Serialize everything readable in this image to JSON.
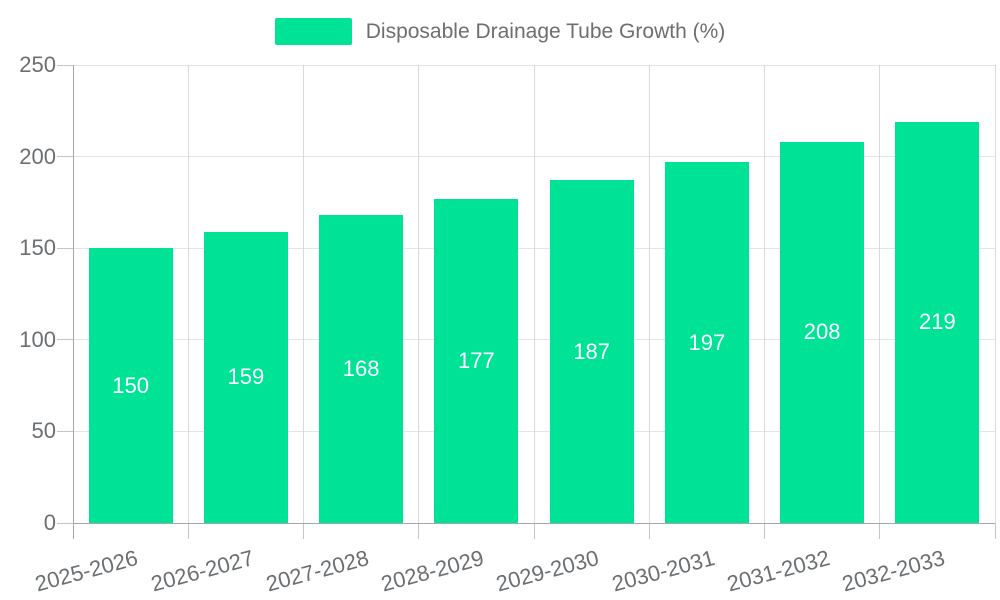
{
  "legend": {
    "label": "Disposable Drainage Tube Growth (%)"
  },
  "chart_data": {
    "type": "bar",
    "title": "",
    "legend_entries": [
      "Disposable Drainage Tube Growth (%)"
    ],
    "legend_position": "top",
    "categories": [
      "2025-2026",
      "2026-2027",
      "2027-2028",
      "2028-2029",
      "2029-2030",
      "2030-2031",
      "2031-2032",
      "2032-2033"
    ],
    "values": [
      150,
      159,
      168,
      177,
      187,
      197,
      208,
      219
    ],
    "xlabel": "",
    "ylabel": "",
    "ylim": [
      0,
      250
    ],
    "yticks": [
      0,
      50,
      100,
      150,
      200,
      250
    ],
    "grid": true,
    "data_labels": true,
    "colors": {
      "bar": "#00E396",
      "grid_horizontal": "#e4e4e4",
      "grid_vertical": "#dadada",
      "axis_line": "#a6a6a6",
      "tick_mark": "#c4c4c4",
      "axis_label_text": "#6b6f72",
      "data_label_text": "#ffffff",
      "legend_text": "#6e6e6e",
      "background": "#ffffff"
    }
  }
}
